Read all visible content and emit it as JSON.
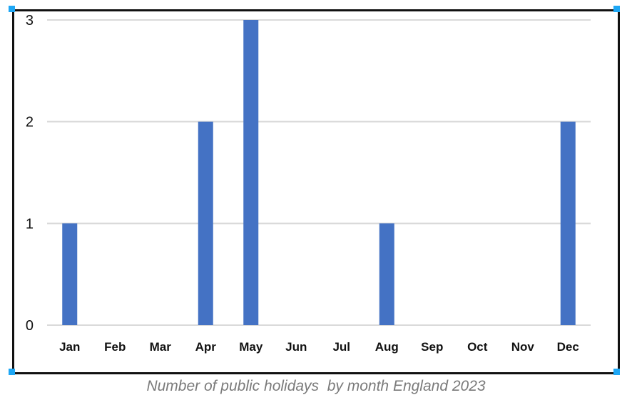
{
  "caption": "Number of public holidays  by month England 2023",
  "colors": {
    "bar": "#4472c4",
    "grid": "#d9d9d9",
    "frame": "#111111",
    "handle": "#1ea7f5",
    "caption": "#7a7a7a"
  },
  "chart_data": {
    "type": "bar",
    "categories": [
      "Jan",
      "Feb",
      "Mar",
      "Apr",
      "May",
      "Jun",
      "Jul",
      "Aug",
      "Sep",
      "Oct",
      "Nov",
      "Dec"
    ],
    "values": [
      1,
      0,
      0,
      2,
      3,
      0,
      0,
      1,
      0,
      0,
      0,
      2
    ],
    "yticks": [
      0,
      1,
      2,
      3
    ],
    "ylim": [
      0,
      3
    ],
    "grid": true,
    "legend": "none",
    "title": "",
    "xlabel": "",
    "ylabel": ""
  }
}
